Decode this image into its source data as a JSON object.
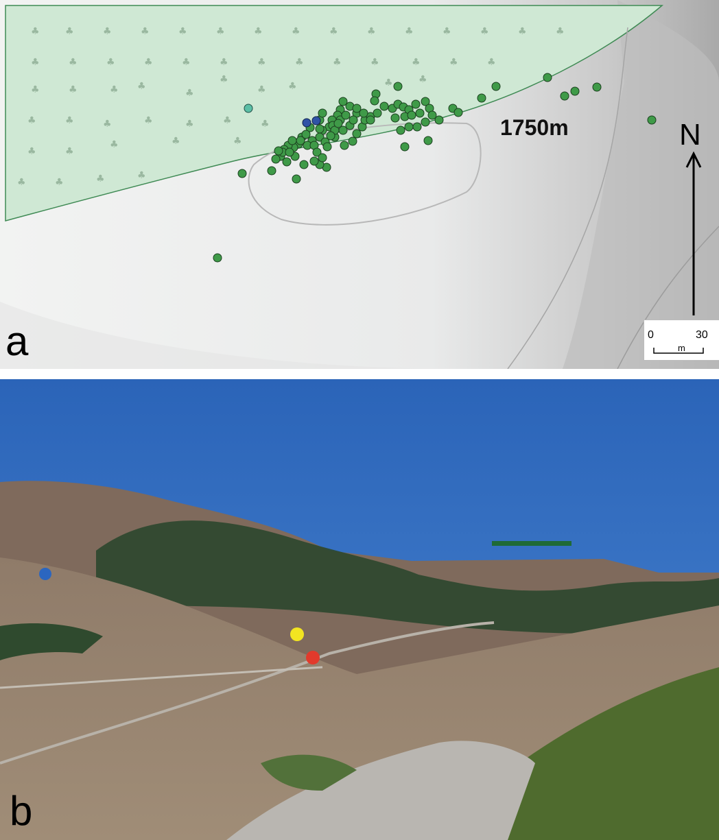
{
  "panel_a": {
    "letter": "a",
    "elevation_label": "1750m",
    "north_label": "N",
    "scale": {
      "zero": "0",
      "unit": "m",
      "max": "30"
    },
    "colors": {
      "forest": "#cfe8d4",
      "open_ground": "#f3f4f3",
      "hillshade": "#b9b9b9",
      "point_green": "#3f9a48",
      "point_blue": "#2f54a6",
      "point_teal": "#5cbfa6"
    }
  },
  "panel_b": {
    "letter": "b",
    "colors": {
      "sky": "#2f6fc3",
      "mountain": "#8a7565",
      "forest": "#27412a",
      "marker_blue": "#2b66c0",
      "marker_yellow": "#f2e421",
      "marker_red": "#e23a2c",
      "marker_green_bar": "#1f6a36"
    }
  }
}
